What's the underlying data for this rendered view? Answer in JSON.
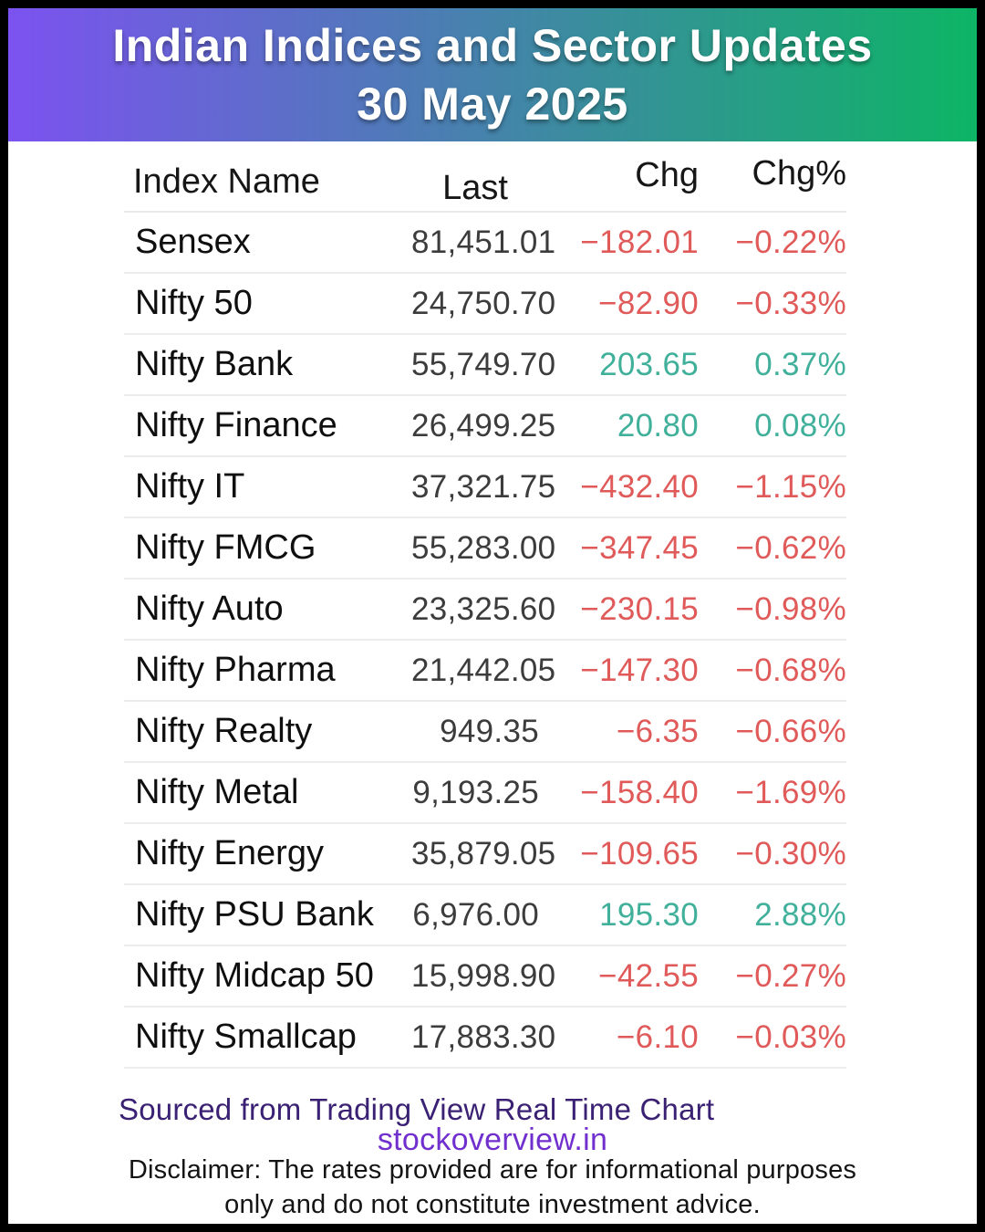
{
  "header": {
    "title_line1": "Indian Indices and Sector Updates",
    "title_line2": "30 May 2025"
  },
  "chart_data": {
    "type": "table",
    "title": "Indian Indices and Sector Updates",
    "date": "30 May 2025",
    "columns": [
      "Index Name",
      "Last",
      "Chg",
      "Chg%"
    ],
    "rows": [
      {
        "name": "Sensex",
        "last": "81,451.01",
        "chg": "−182.01",
        "chg_pct": "−0.22%",
        "direction": "down"
      },
      {
        "name": "Nifty 50",
        "last": "24,750.70",
        "chg": "−82.90",
        "chg_pct": "−0.33%",
        "direction": "down"
      },
      {
        "name": "Nifty Bank",
        "last": "55,749.70",
        "chg": "203.65",
        "chg_pct": "0.37%",
        "direction": "up"
      },
      {
        "name": "Nifty Finance",
        "last": "26,499.25",
        "chg": "20.80",
        "chg_pct": "0.08%",
        "direction": "up"
      },
      {
        "name": "Nifty IT",
        "last": "37,321.75",
        "chg": "−432.40",
        "chg_pct": "−1.15%",
        "direction": "down"
      },
      {
        "name": "Nifty FMCG",
        "last": "55,283.00",
        "chg": "−347.45",
        "chg_pct": "−0.62%",
        "direction": "down"
      },
      {
        "name": "Nifty Auto",
        "last": "23,325.60",
        "chg": "−230.15",
        "chg_pct": "−0.98%",
        "direction": "down"
      },
      {
        "name": "Nifty Pharma",
        "last": "21,442.05",
        "chg": "−147.30",
        "chg_pct": "−0.68%",
        "direction": "down"
      },
      {
        "name": "Nifty Realty",
        "last": "949.35",
        "chg": "−6.35",
        "chg_pct": "−0.66%",
        "direction": "down"
      },
      {
        "name": "Nifty Metal",
        "last": "9,193.25",
        "chg": "−158.40",
        "chg_pct": "−1.69%",
        "direction": "down"
      },
      {
        "name": "Nifty Energy",
        "last": "35,879.05",
        "chg": "−109.65",
        "chg_pct": "−0.30%",
        "direction": "down"
      },
      {
        "name": "Nifty PSU Bank",
        "last": "6,976.00",
        "chg": "195.30",
        "chg_pct": "2.88%",
        "direction": "up"
      },
      {
        "name": "Nifty Midcap 50",
        "last": "15,998.90",
        "chg": "−42.55",
        "chg_pct": "−0.27%",
        "direction": "down"
      },
      {
        "name": "Nifty Smallcap",
        "last": "17,883.30",
        "chg": "−6.10",
        "chg_pct": "−0.03%",
        "direction": "down"
      }
    ],
    "layout_hints": {
      "grid": "horizontal row separators",
      "numeric_alignment": "right"
    }
  },
  "colors": {
    "positive": "#40B09B",
    "negative": "#E05A5A",
    "last_value_text": "#3C3C3C",
    "banner_gradient_start": "#7C52F0",
    "banner_gradient_end": "#0DB565",
    "source_text": "#3A2173",
    "website_text": "#7130CE"
  },
  "footer": {
    "source_line": "Sourced from Trading View Real Time Chart",
    "website": "stockoverview.in",
    "disclaimer_line1": "Disclaimer: The rates provided are for informational purposes",
    "disclaimer_line2": "only and do not constitute investment advice."
  }
}
